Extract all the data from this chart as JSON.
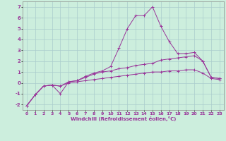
{
  "xlabel": "Windchill (Refroidissement éolien,°C)",
  "background_color": "#cceedd",
  "line_color": "#993399",
  "grid_color": "#aacccc",
  "series": [
    {
      "x": [
        0,
        1,
        2,
        3,
        4,
        5,
        6,
        7,
        8,
        9,
        10,
        11,
        12,
        13,
        14,
        15,
        16,
        17,
        18,
        19,
        20,
        21,
        22,
        23
      ],
      "y": [
        -2.1,
        -1.1,
        -0.3,
        -0.2,
        -1.0,
        0.1,
        0.2,
        0.6,
        0.9,
        1.1,
        1.5,
        3.2,
        5.0,
        6.2,
        6.2,
        7.0,
        5.2,
        3.8,
        2.7,
        2.7,
        2.8,
        2.0,
        0.5,
        0.4
      ]
    },
    {
      "x": [
        0,
        1,
        2,
        3,
        4,
        5,
        6,
        7,
        8,
        9,
        10,
        11,
        12,
        13,
        14,
        15,
        16,
        17,
        18,
        19,
        20,
        21,
        22,
        23
      ],
      "y": [
        -2.1,
        -1.1,
        -0.3,
        -0.2,
        -0.3,
        0.1,
        0.2,
        0.5,
        0.8,
        1.0,
        1.1,
        1.3,
        1.4,
        1.6,
        1.7,
        1.8,
        2.1,
        2.2,
        2.3,
        2.4,
        2.5,
        2.0,
        0.5,
        0.4
      ]
    },
    {
      "x": [
        0,
        1,
        2,
        3,
        4,
        5,
        6,
        7,
        8,
        9,
        10,
        11,
        12,
        13,
        14,
        15,
        16,
        17,
        18,
        19,
        20,
        21,
        22,
        23
      ],
      "y": [
        -2.1,
        -1.1,
        -0.3,
        -0.2,
        -0.3,
        0.0,
        0.1,
        0.2,
        0.3,
        0.4,
        0.5,
        0.6,
        0.7,
        0.8,
        0.9,
        1.0,
        1.0,
        1.1,
        1.1,
        1.2,
        1.2,
        0.9,
        0.4,
        0.3
      ]
    }
  ],
  "ylim": [
    -2.5,
    7.5
  ],
  "yticks": [
    -2,
    -1,
    0,
    1,
    2,
    3,
    4,
    5,
    6,
    7
  ],
  "xlim": [
    -0.5,
    23.5
  ],
  "xticks": [
    0,
    1,
    2,
    3,
    4,
    5,
    6,
    7,
    8,
    9,
    10,
    11,
    12,
    13,
    14,
    15,
    16,
    17,
    18,
    19,
    20,
    21,
    22,
    23
  ]
}
